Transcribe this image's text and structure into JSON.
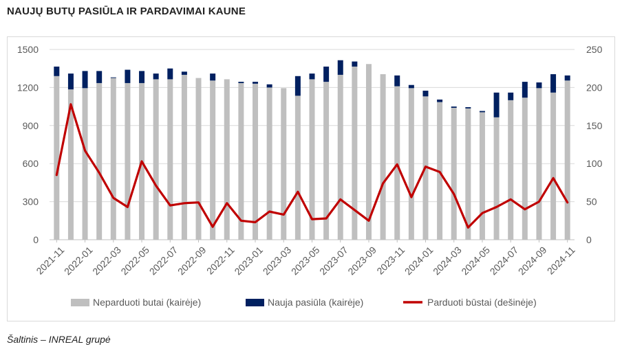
{
  "header": {
    "title": "NAUJŲ BUTŲ PASIŪLA IR PARDAVIMAI KAUNE"
  },
  "footer": {
    "source": "Šaltinis – INREAL grupė"
  },
  "colors": {
    "unsold": "#bfbfbf",
    "new_supply": "#002060",
    "sold": "#c00000"
  },
  "chart_data": {
    "type": "bar",
    "stacked": true,
    "title": "",
    "xlabel": "",
    "ylabel": "",
    "ylim": [
      0,
      1500
    ],
    "y2lim": [
      0,
      250
    ],
    "yticks": [
      "0",
      "300",
      "600",
      "900",
      "1200",
      "1500"
    ],
    "y2ticks": [
      "0",
      "50",
      "100",
      "150",
      "200",
      "250"
    ],
    "grid": true,
    "legend_position": "bottom",
    "categories": [
      "2021-11",
      "2021-12",
      "2022-01",
      "2022-02",
      "2022-03",
      "2022-04",
      "2022-05",
      "2022-06",
      "2022-07",
      "2022-08",
      "2022-09",
      "2022-10",
      "2022-11",
      "2022-12",
      "2023-01",
      "2023-02",
      "2023-03",
      "2023-04",
      "2023-05",
      "2023-06",
      "2023-07",
      "2023-08",
      "2023-09",
      "2023-10",
      "2023-11",
      "2023-12",
      "2024-01",
      "2024-02",
      "2024-03",
      "2024-04",
      "2024-05",
      "2024-06",
      "2024-07",
      "2024-08",
      "2024-09",
      "2024-10",
      "2024-11"
    ],
    "xtick_labels": [
      "2021-11",
      "2022-01",
      "2022-03",
      "2022-05",
      "2022-07",
      "2022-09",
      "2022-11",
      "2023-01",
      "2023-03",
      "2023-05",
      "2023-07",
      "2023-09",
      "2023-11",
      "2024-01",
      "2024-03",
      "2024-05",
      "2024-07",
      "2024-09",
      "2024-11"
    ],
    "series": [
      {
        "name": "Neparduoti butai (kairėje)",
        "axis": "left",
        "type": "bar",
        "values": [
          1290,
          1185,
          1195,
          1235,
          1275,
          1235,
          1235,
          1265,
          1265,
          1300,
          1275,
          1255,
          1265,
          1235,
          1230,
          1200,
          1195,
          1135,
          1265,
          1245,
          1300,
          1365,
          1385,
          1305,
          1210,
          1195,
          1130,
          1085,
          1040,
          1035,
          1005,
          965,
          1100,
          1120,
          1195,
          1160,
          1255
        ]
      },
      {
        "name": "Nauja pasiūla (kairėje)",
        "axis": "left",
        "type": "bar",
        "values": [
          75,
          125,
          135,
          95,
          5,
          105,
          95,
          45,
          85,
          25,
          0,
          55,
          0,
          10,
          15,
          25,
          0,
          155,
          45,
          120,
          115,
          40,
          0,
          0,
          85,
          25,
          45,
          20,
          10,
          10,
          10,
          195,
          60,
          125,
          45,
          145,
          40
        ]
      },
      {
        "name": "Parduoti būstai (dešinėje)",
        "axis": "right",
        "type": "line",
        "values": [
          85,
          178,
          117,
          88,
          55,
          43,
          103,
          71,
          45,
          48,
          49,
          17,
          48,
          25,
          23,
          37,
          33,
          63,
          27,
          28,
          53,
          39,
          25,
          74,
          99,
          56,
          96,
          89,
          60,
          16,
          35,
          43,
          53,
          40,
          50,
          81,
          49
        ]
      }
    ]
  }
}
